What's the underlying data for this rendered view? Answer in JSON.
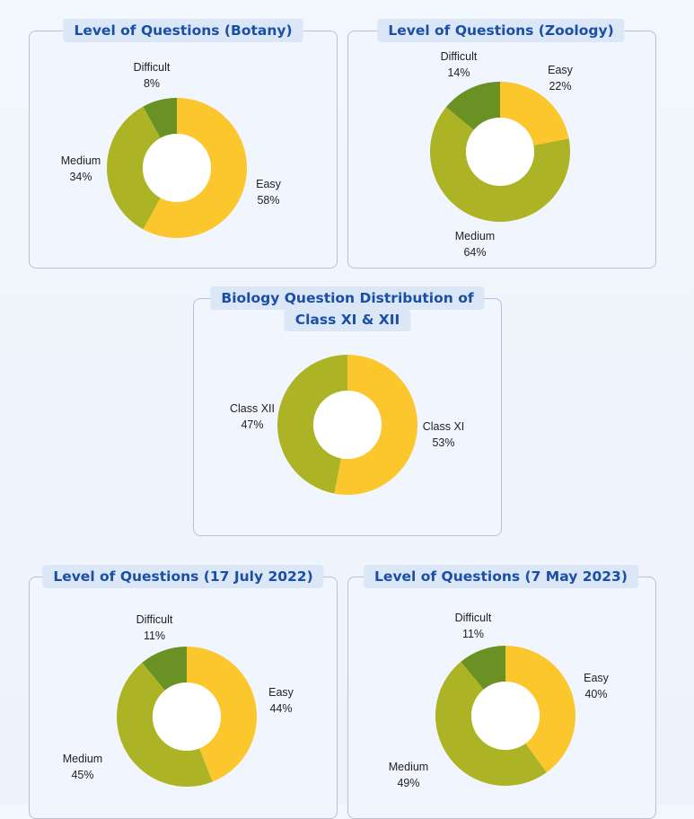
{
  "colors": {
    "easy": "#fcc72c",
    "medium": "#acb425",
    "difficult": "#6a9123",
    "title_text": "#1a4fa6",
    "title_bg": "#dbe6f6"
  },
  "chart_data": [
    {
      "type": "pie",
      "title": "Level of Questions (Botany)",
      "categories": [
        "Easy",
        "Medium",
        "Difficult"
      ],
      "values": [
        58,
        34,
        8
      ],
      "value_labels": [
        "58%",
        "34%",
        "8%"
      ]
    },
    {
      "type": "pie",
      "title": "Level of Questions (Zoology)",
      "categories": [
        "Easy",
        "Medium",
        "Difficult"
      ],
      "values": [
        22,
        64,
        14
      ],
      "value_labels": [
        "22%",
        "64%",
        "14%"
      ]
    },
    {
      "type": "pie",
      "title": "Biology Question Distribution of Class XI & XII",
      "title_lines": [
        "Biology Question Distribution of",
        "Class XI & XII"
      ],
      "categories": [
        "Class XI",
        "Class XII"
      ],
      "values": [
        53,
        47
      ],
      "value_labels": [
        "53%",
        "47%"
      ]
    },
    {
      "type": "pie",
      "title": "Level of Questions (17 July 2022)",
      "categories": [
        "Easy",
        "Medium",
        "Difficult"
      ],
      "values": [
        44,
        45,
        11
      ],
      "value_labels": [
        "44%",
        "45%",
        "11%"
      ]
    },
    {
      "type": "pie",
      "title": "Level of Questions (7 May 2023)",
      "categories": [
        "Easy",
        "Medium",
        "Difficult"
      ],
      "values": [
        40,
        49,
        11
      ],
      "value_labels": [
        "40%",
        "49%",
        "11%"
      ]
    }
  ]
}
